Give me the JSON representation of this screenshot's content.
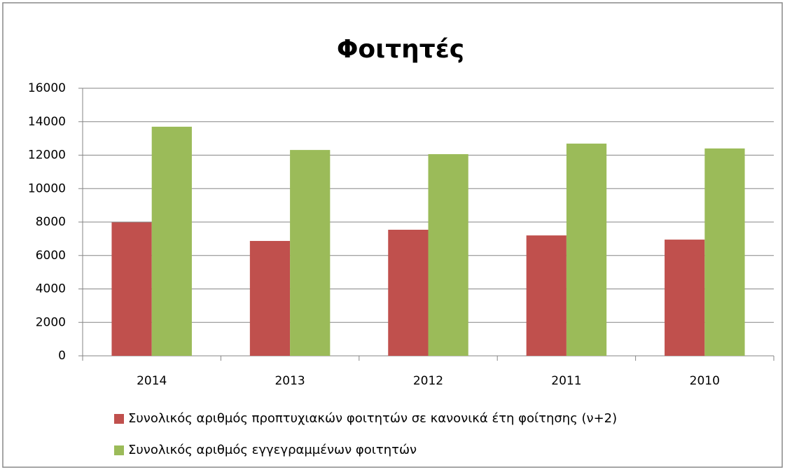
{
  "chart_data": {
    "type": "bar",
    "title": "Φοιτητές",
    "categories": [
      "2014",
      "2013",
      "2012",
      "2011",
      "2010"
    ],
    "series": [
      {
        "name": "Συνολικός αριθμός προπτυχιακών φοιτητών σε κανονικά έτη φοίτησης (ν+2)",
        "color": "#c0504d",
        "values": [
          7980,
          6870,
          7540,
          7200,
          6950
        ]
      },
      {
        "name": "Συνολικός αριθμός εγγεγραμμένων φοιτητών",
        "color": "#9bbb59",
        "values": [
          13700,
          12310,
          12060,
          12690,
          12400
        ]
      }
    ],
    "ylim": [
      0,
      16000
    ],
    "yticks": [
      0,
      2000,
      4000,
      6000,
      8000,
      10000,
      12000,
      14000,
      16000
    ],
    "grid": true,
    "legend": "bottom"
  }
}
